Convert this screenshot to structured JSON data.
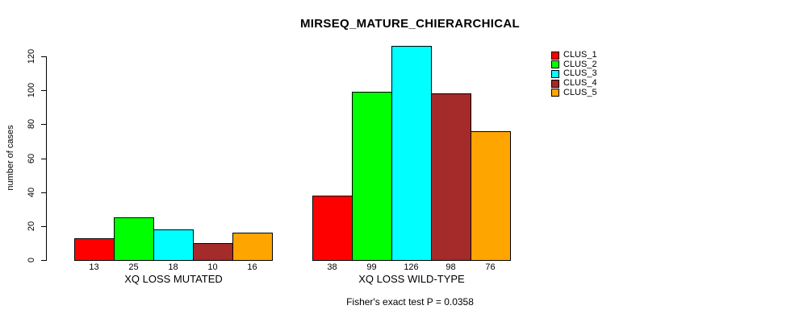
{
  "page": {
    "background": "#ffffff",
    "text_color": "#000000"
  },
  "chart_data": {
    "type": "bar",
    "title": "MIRSEQ_MATURE_CHIERARCHICAL",
    "ylabel": "number of cases",
    "xlabel": "",
    "categories": [
      "XQ LOSS MUTATED",
      "XQ LOSS WILD-TYPE"
    ],
    "series": [
      {
        "name": "CLUS_1",
        "color": "#FF0000",
        "values": [
          13,
          38
        ]
      },
      {
        "name": "CLUS_2",
        "color": "#00FF00",
        "values": [
          25,
          99
        ]
      },
      {
        "name": "CLUS_3",
        "color": "#00FFFF",
        "values": [
          18,
          126
        ]
      },
      {
        "name": "CLUS_4",
        "color": "#A52A2A",
        "values": [
          10,
          98
        ]
      },
      {
        "name": "CLUS_5",
        "color": "#FFA500",
        "values": [
          16,
          76
        ]
      }
    ],
    "bar_value_labels": [
      [
        "13",
        "25",
        "18",
        "10",
        "16"
      ],
      [
        "38",
        "99",
        "126",
        "98",
        "76"
      ]
    ],
    "ylim": [
      0,
      126
    ],
    "yticks": [
      0,
      20,
      40,
      60,
      80,
      100,
      120
    ],
    "grid": false,
    "legend_position": "right",
    "annotation": "Fisher's exact test P = 0.0358"
  }
}
